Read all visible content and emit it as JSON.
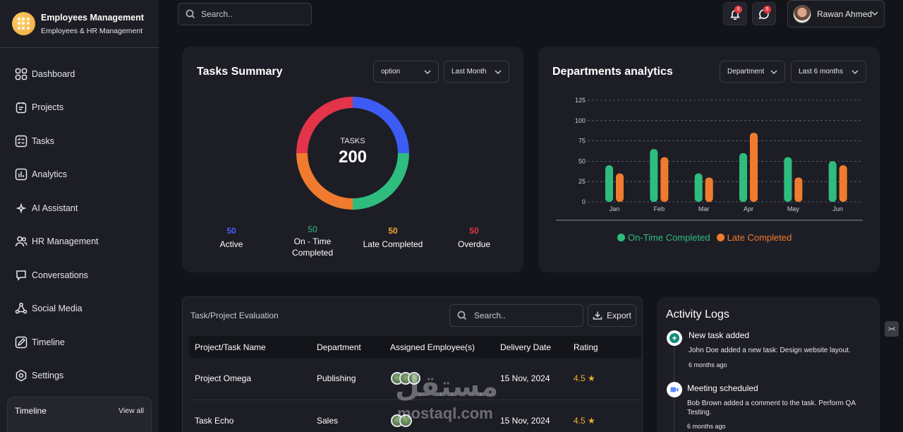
{
  "brand": {
    "title": "Employees Management",
    "subtitle": "Employees & HR Management"
  },
  "nav": [
    {
      "label": "Dashboard",
      "icon": "grid-icon"
    },
    {
      "label": "Projects",
      "icon": "clipboard-icon"
    },
    {
      "label": "Tasks",
      "icon": "checklist-icon"
    },
    {
      "label": "Analytics",
      "icon": "analytics-icon"
    },
    {
      "label": "AI Assistant",
      "icon": "sparkle-icon"
    },
    {
      "label": "HR Management",
      "icon": "users-icon"
    },
    {
      "label": "Conversations",
      "icon": "chat-icon"
    },
    {
      "label": "Social Media",
      "icon": "share-icon"
    },
    {
      "label": "Timeline",
      "icon": "pen-icon"
    },
    {
      "label": "Settings",
      "icon": "settings-icon"
    }
  ],
  "timeline_card": {
    "title": "Timeline",
    "view_all": "View all"
  },
  "topbar": {
    "search_placeholder": "Search..",
    "notifications_count": "5",
    "messages_count": "5",
    "user_name": "Rawan Ahmed"
  },
  "tasks_summary": {
    "title": "Tasks Summary",
    "filter_option": "option",
    "filter_period": "Last Month",
    "center_label": "TASKS",
    "center_value": "200",
    "stats": [
      {
        "value": "50",
        "label": "Active",
        "color": "#4a5cff"
      },
      {
        "value": "50",
        "label": "On - Time Completed",
        "color": "#2ebd7f"
      },
      {
        "value": "50",
        "label": "Late Completed",
        "color": "#f2a33a"
      },
      {
        "value": "50",
        "label": "Overdue",
        "color": "#e3344a"
      }
    ]
  },
  "departments": {
    "title": "Departments analytics",
    "filter_dept": "Department",
    "filter_period": "Last 6 months"
  },
  "chart_data": {
    "type": "bar",
    "categories": [
      "Jan",
      "Feb",
      "Mar",
      "Apr",
      "May",
      "Jun"
    ],
    "series": [
      {
        "name": "On-Time Completed",
        "values": [
          45,
          65,
          35,
          60,
          55,
          50
        ],
        "color": "#2ebd7f"
      },
      {
        "name": "Late Completed",
        "values": [
          35,
          55,
          30,
          85,
          30,
          45
        ],
        "color": "#f07b2e"
      }
    ],
    "y_ticks": [
      "0",
      "25",
      "50",
      "75",
      "100",
      "125"
    ],
    "ylim": [
      0,
      125
    ],
    "grid": true,
    "legend": "bottom"
  },
  "donut_data": {
    "type": "pie",
    "segments": [
      {
        "name": "Active",
        "value": 50,
        "color": "#3d5bf5"
      },
      {
        "name": "On - Time Completed",
        "value": 50,
        "color": "#2ebd7f"
      },
      {
        "name": "Late Completed",
        "value": 50,
        "color": "#f07b2e"
      },
      {
        "name": "Overdue",
        "value": 50,
        "color": "#e3344a"
      }
    ]
  },
  "evaluation": {
    "title": "Task/Project Evaluation",
    "search_placeholder": "Search..",
    "export_label": "Export",
    "columns": [
      "Project/Task Name",
      "Department",
      "Assigned Employee(s)",
      "Delivery Date",
      "Rating"
    ],
    "rows": [
      {
        "name": "Project Omega",
        "department": "Publishing",
        "date": "15 Nov, 2024",
        "rating": "4.5 ★"
      },
      {
        "name": "Task Echo",
        "department": "Sales",
        "date": "15 Nov, 2024",
        "rating": "4.5 ★"
      }
    ]
  },
  "activity": {
    "title": "Activity Logs",
    "items": [
      {
        "title": "New task added",
        "desc": "John Doe added a new task: Design website layout.",
        "time": "6 months ago"
      },
      {
        "title": "Meeting scheduled",
        "desc": "Bob Brown added a comment to the task. Perform QA Testing.",
        "time": "6 months ago"
      }
    ]
  },
  "watermark": {
    "arabic": "مستقل",
    "latin": "mostaql.com"
  },
  "side_toggle": "><"
}
